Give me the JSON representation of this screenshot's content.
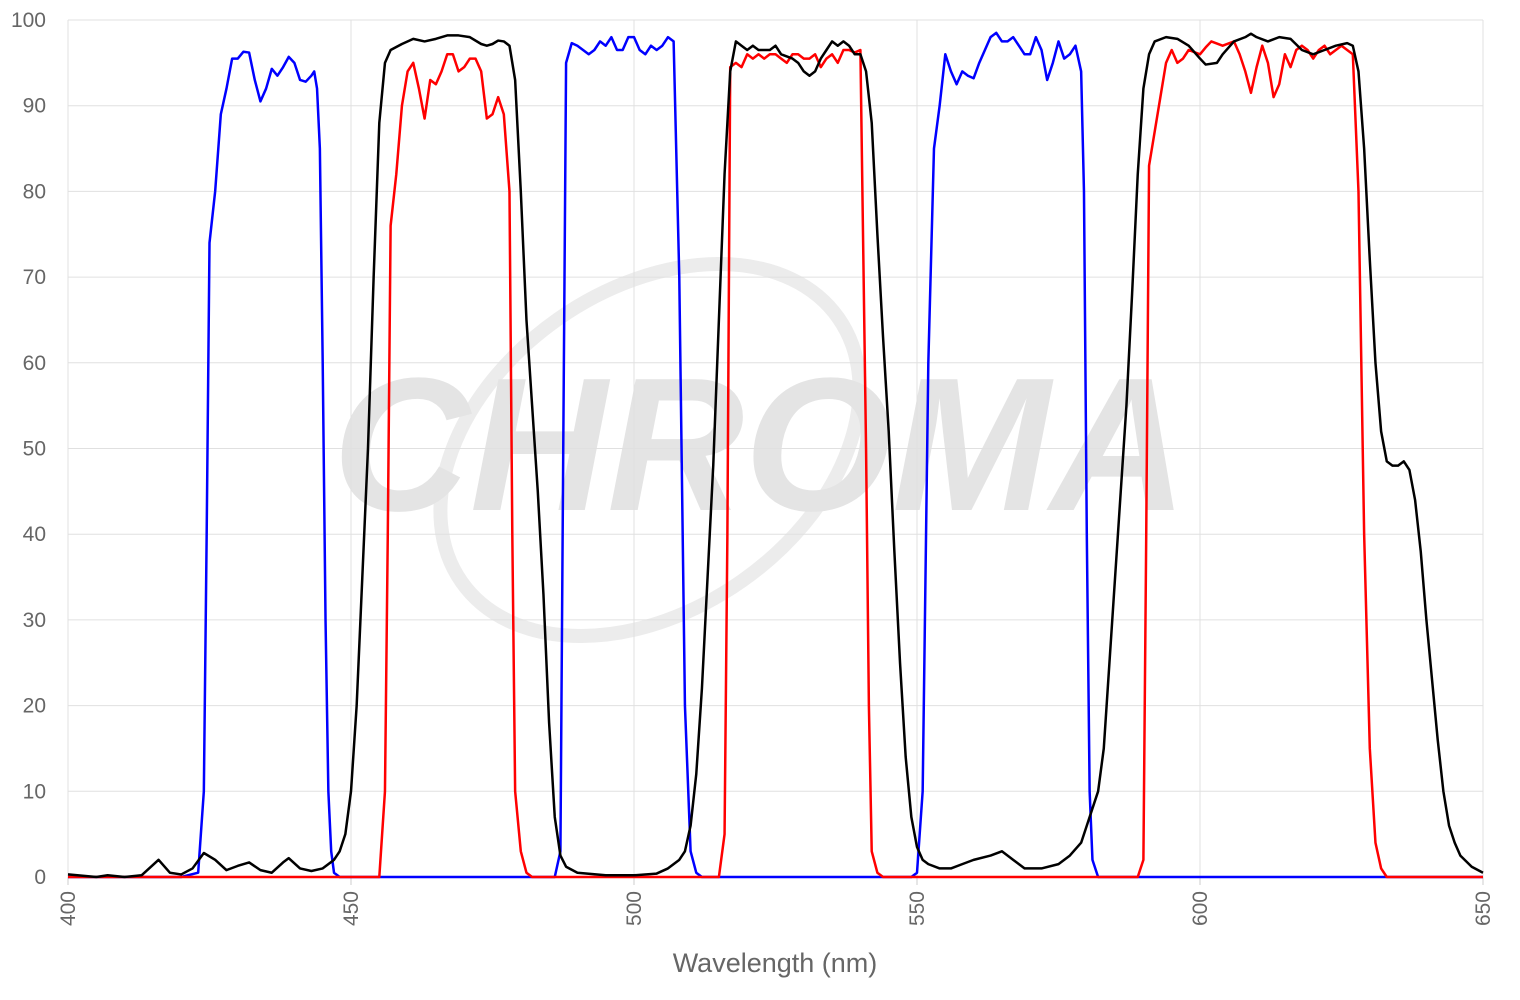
{
  "chart_data": {
    "type": "line",
    "x_label": "Wavelength (nm)",
    "watermark": "CHROMA",
    "xlim": [
      400,
      650
    ],
    "xticks": [
      400,
      450,
      500,
      550,
      600,
      650
    ],
    "ylim": [
      0,
      100
    ],
    "yticks": [
      0,
      10,
      20,
      30,
      40,
      50,
      60,
      70,
      80,
      90,
      100
    ],
    "grid": true,
    "series": [
      {
        "color": "#0000ff",
        "x": [
          400,
          420,
          423,
          424,
          424.5,
          425,
          426,
          427,
          428,
          429,
          430,
          431,
          432,
          433,
          434,
          435,
          436,
          437,
          438,
          439,
          440,
          441,
          442,
          443,
          443.5,
          444,
          444.5,
          445,
          445.5,
          446,
          446.5,
          447,
          448,
          486,
          487,
          487.5,
          488,
          489,
          490,
          491,
          492,
          493,
          494,
          495,
          496,
          497,
          498,
          499,
          500,
          501,
          502,
          503,
          504,
          505,
          506,
          507,
          508,
          509,
          510,
          511,
          512,
          549,
          550,
          551,
          552,
          553,
          554,
          555,
          556,
          557,
          558,
          559,
          560,
          561,
          562,
          563,
          564,
          565,
          566,
          567,
          568,
          569,
          570,
          571,
          572,
          573,
          574,
          575,
          576,
          577,
          578,
          579,
          579.5,
          580,
          580.5,
          581,
          582,
          650
        ],
        "values": [
          0,
          0,
          0.5,
          10,
          40,
          74,
          80,
          89,
          92,
          95.5,
          95.5,
          96.3,
          96.2,
          93,
          90.5,
          92,
          94.3,
          93.5,
          94.5,
          95.7,
          95,
          93,
          92.8,
          93.5,
          94,
          92,
          85,
          60,
          30,
          10,
          3,
          0.5,
          0,
          0,
          3,
          50,
          95,
          97.3,
          97,
          96.5,
          96,
          96.5,
          97.5,
          97,
          98,
          96.5,
          96.5,
          98,
          98,
          96.5,
          96,
          97,
          96.5,
          97,
          98,
          97.5,
          70,
          20,
          3,
          0.5,
          0,
          0,
          0.5,
          10,
          60,
          85,
          90,
          96,
          94,
          92.5,
          94,
          93.5,
          93.2,
          95,
          96.5,
          98,
          98.5,
          97.5,
          97.5,
          98,
          97,
          96,
          96,
          98,
          96.5,
          93,
          95,
          97.5,
          95.5,
          96,
          97,
          94,
          80,
          40,
          10,
          2,
          0,
          0
        ]
      },
      {
        "color": "#ff0000",
        "x": [
          400,
          455,
          456,
          456.5,
          457,
          458,
          459,
          460,
          461,
          462,
          463,
          464,
          465,
          466,
          467,
          468,
          469,
          470,
          471,
          472,
          473,
          474,
          475,
          476,
          477,
          478,
          478.5,
          479,
          480,
          481,
          482,
          515,
          516,
          516.5,
          517,
          518,
          519,
          520,
          521,
          522,
          523,
          524,
          525,
          526,
          527,
          528,
          529,
          530,
          531,
          532,
          533,
          534,
          535,
          536,
          537,
          538,
          539,
          540,
          541,
          541.5,
          542,
          543,
          544,
          589,
          590,
          590.5,
          591,
          592,
          593,
          594,
          595,
          596,
          597,
          598,
          600,
          601,
          602,
          604,
          606,
          607,
          608,
          609,
          610,
          611,
          612,
          613,
          614,
          615,
          616,
          617,
          618,
          619,
          620,
          621,
          622,
          623,
          624,
          625,
          626,
          627,
          628,
          629,
          630,
          631,
          632,
          633,
          650
        ],
        "values": [
          0,
          0,
          10,
          40,
          76,
          82,
          90,
          94,
          95,
          92,
          88.5,
          93,
          92.5,
          94,
          96,
          96,
          94,
          94.5,
          95.5,
          95.5,
          94,
          88.5,
          89,
          91,
          89,
          80,
          40,
          10,
          3,
          0.5,
          0,
          0,
          5,
          40,
          94.5,
          95,
          94.5,
          96,
          95.5,
          96,
          95.5,
          96,
          96,
          95.5,
          95,
          96,
          96,
          95.5,
          95.5,
          96,
          94.5,
          95.5,
          96,
          95,
          96.5,
          96.5,
          96.2,
          96.5,
          50,
          20,
          3,
          0.5,
          0,
          0,
          2,
          40,
          83,
          87,
          91,
          95,
          96.5,
          95,
          95.5,
          96.5,
          96,
          96.8,
          97.5,
          97,
          97.5,
          96,
          94,
          91.5,
          94.5,
          97,
          95,
          91,
          92.5,
          96,
          94.5,
          96.5,
          97,
          96.5,
          95.5,
          96.5,
          97,
          96,
          96.5,
          97,
          96.5,
          96,
          80,
          40,
          15,
          4,
          1,
          0,
          0
        ]
      },
      {
        "color": "#000000",
        "x": [
          400,
          405,
          407,
          410,
          413,
          416,
          418,
          420,
          422,
          424,
          426,
          428,
          430,
          432,
          434,
          436,
          438,
          439,
          441,
          443,
          445,
          447,
          448,
          449,
          450,
          451,
          452,
          453,
          454,
          455,
          456,
          457,
          459,
          461,
          463,
          465,
          467,
          469,
          471,
          473,
          474,
          475,
          476,
          477,
          478,
          479,
          480,
          481,
          482,
          483,
          484,
          485,
          486,
          487,
          488,
          490,
          495,
          500,
          504,
          506,
          507,
          508,
          509,
          510,
          511,
          512,
          513,
          514,
          515,
          516,
          517,
          518,
          519,
          520,
          521,
          522,
          524,
          525,
          526,
          528,
          529,
          530,
          531,
          532,
          533,
          534,
          535,
          536,
          537,
          538,
          539,
          540,
          541,
          542,
          543,
          544,
          545,
          546,
          547,
          548,
          549,
          550,
          551,
          552,
          554,
          556,
          558,
          560,
          563,
          565,
          567,
          569,
          572,
          575,
          577,
          579,
          580,
          581,
          582,
          583,
          584,
          585,
          586,
          587,
          588,
          589,
          590,
          591,
          592,
          594,
          596,
          598,
          600,
          601,
          603,
          604,
          606,
          608,
          609,
          610,
          612,
          614,
          616,
          618,
          620,
          622,
          624,
          626,
          627,
          628,
          629,
          630,
          631,
          632,
          633,
          634,
          635,
          636,
          637,
          638,
          639,
          640,
          641,
          642,
          643,
          644,
          645,
          646,
          648,
          650
        ],
        "values": [
          0.3,
          0,
          0.2,
          0,
          0.2,
          2,
          0.5,
          0.3,
          1,
          2.8,
          2,
          0.8,
          1.3,
          1.7,
          0.8,
          0.5,
          1.7,
          2.2,
          1,
          0.7,
          1,
          2,
          3,
          5,
          10,
          20,
          35,
          50,
          70,
          88,
          95,
          96.5,
          97.2,
          97.8,
          97.5,
          97.8,
          98.2,
          98.2,
          98,
          97.2,
          97,
          97.2,
          97.6,
          97.5,
          97,
          93,
          80,
          65,
          55,
          45,
          33,
          18,
          7,
          2.5,
          1.2,
          0.5,
          0.2,
          0.2,
          0.4,
          1,
          1.5,
          2,
          3,
          6,
          12,
          22,
          35,
          48,
          65,
          82,
          94,
          97.5,
          97,
          96.5,
          97,
          96.5,
          96.5,
          97,
          96,
          95.5,
          95,
          94,
          93.5,
          94,
          95.5,
          96.5,
          97.5,
          97,
          97.5,
          97,
          96,
          96,
          94,
          88,
          75,
          63,
          52,
          38,
          25,
          14,
          7,
          3.5,
          2,
          1.5,
          1,
          1,
          1.5,
          2,
          2.5,
          3,
          2,
          1,
          1,
          1.5,
          2.5,
          4,
          6,
          8,
          10,
          15,
          25,
          35,
          45,
          55,
          68,
          82,
          92,
          96,
          97.5,
          98,
          97.8,
          97,
          95.5,
          94.8,
          95,
          96,
          97.5,
          98,
          98.4,
          98,
          97.5,
          98,
          97.8,
          96.5,
          96,
          96.5,
          97,
          97.3,
          97,
          94,
          85,
          72,
          60,
          52,
          48.5,
          48,
          48,
          48.5,
          47.5,
          44,
          38,
          30,
          23,
          16,
          10,
          6,
          4,
          2.5,
          1.2,
          0.5
        ]
      }
    ]
  }
}
